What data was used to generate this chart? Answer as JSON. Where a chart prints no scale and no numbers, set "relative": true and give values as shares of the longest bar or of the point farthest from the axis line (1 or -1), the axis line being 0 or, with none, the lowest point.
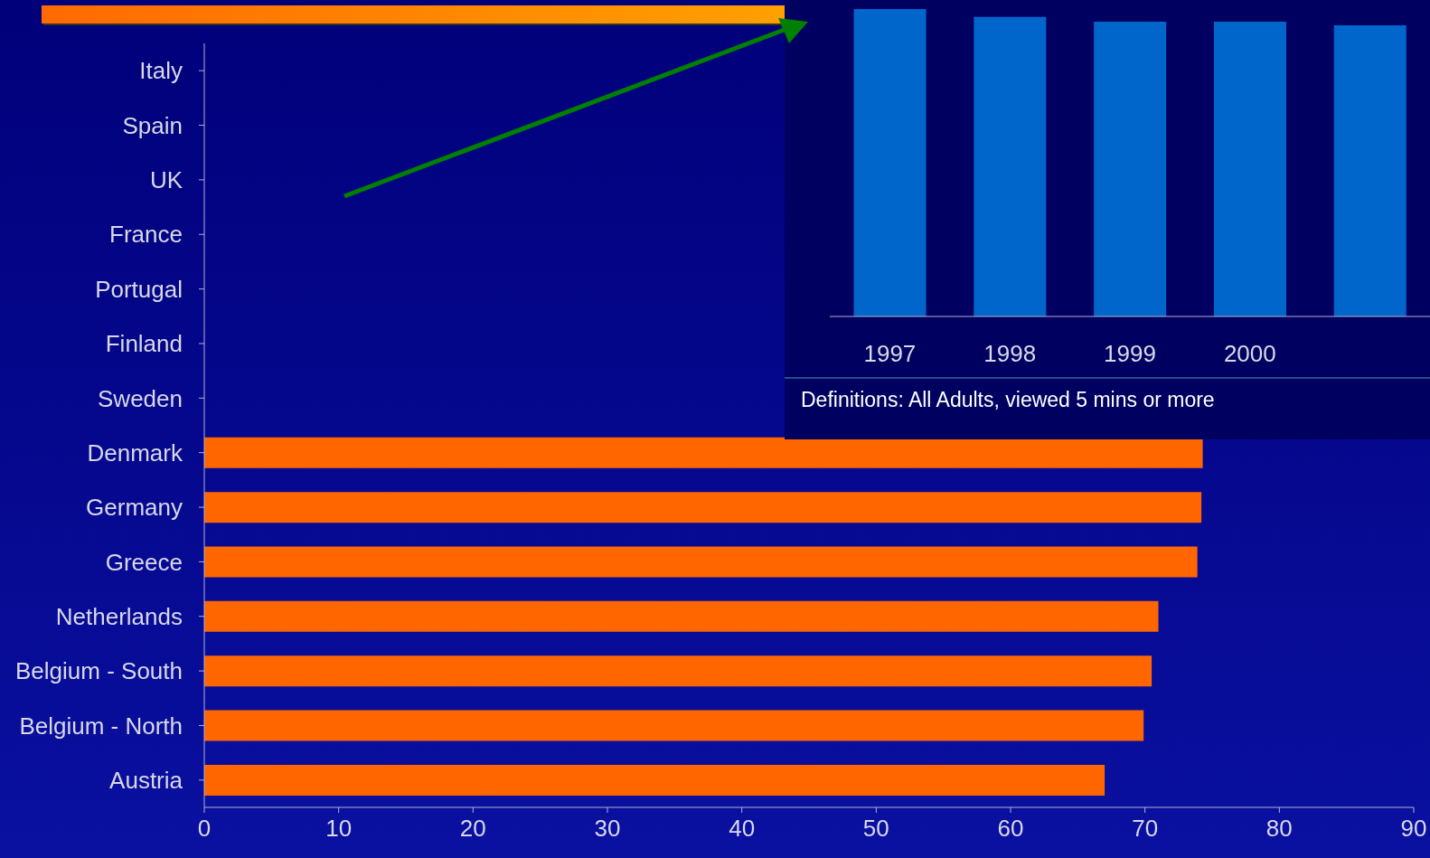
{
  "chart_data": [
    {
      "type": "bar",
      "orientation": "horizontal",
      "categories": [
        "Italy",
        "Spain",
        "UK",
        "France",
        "Portugal",
        "Finland",
        "Sweden",
        "Denmark",
        "Germany",
        "Greece",
        "Netherlands",
        "Belgium - South",
        "Belgium - North",
        "Austria"
      ],
      "values": [
        null,
        null,
        null,
        null,
        null,
        null,
        null,
        74.3,
        74.2,
        73.9,
        71.0,
        70.5,
        69.9,
        67.0
      ],
      "color": "#ff6600",
      "xlim": [
        0,
        90
      ],
      "xticks": [
        0,
        10,
        20,
        30,
        40,
        50,
        60,
        70,
        80,
        90
      ],
      "grid": false,
      "legend": false
    },
    {
      "type": "bar",
      "categories": [
        "1997",
        "1998",
        "1999",
        "2000",
        null
      ],
      "values": [
        1,
        0.974,
        0.959,
        0.959,
        0.947
      ],
      "color": "#0066cc",
      "relative": true,
      "grid": false,
      "legend": false,
      "annotations": [
        "Definitions: All Adults, viewed 5 mins or more"
      ]
    }
  ]
}
